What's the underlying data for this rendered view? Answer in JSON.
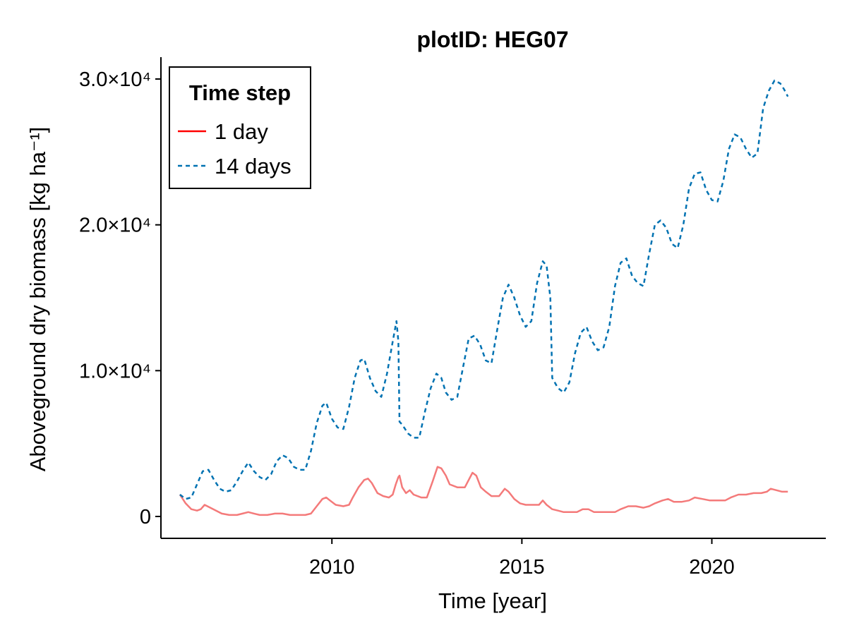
{
  "chart_data": {
    "type": "line",
    "title": "plotID: HEG07",
    "xlabel": "Time [year]",
    "ylabel": "Aboveground dry biomass [kg ha⁻¹]",
    "xlim": [
      2005.5,
      2023.0
    ],
    "ylim": [
      -1500,
      31500
    ],
    "x_ticks": [
      2010,
      2015,
      2020
    ],
    "x_tick_labels": [
      "2010",
      "2015",
      "2020"
    ],
    "y_ticks": [
      0,
      10000,
      20000,
      30000
    ],
    "y_tick_labels": [
      "0",
      "1.0×10⁴",
      "2.0×10⁴",
      "3.0×10⁴"
    ],
    "grid": false,
    "legend": {
      "title": "Time step",
      "position": "top-left"
    },
    "series": [
      {
        "name": "1 day",
        "color": "#ff0000",
        "line_color": "#f47a7a",
        "dash": "solid",
        "points": [
          [
            2006.0,
            1500
          ],
          [
            2006.15,
            900
          ],
          [
            2006.3,
            500
          ],
          [
            2006.45,
            400
          ],
          [
            2006.55,
            500
          ],
          [
            2006.65,
            800
          ],
          [
            2006.8,
            600
          ],
          [
            2006.95,
            400
          ],
          [
            2007.1,
            200
          ],
          [
            2007.3,
            100
          ],
          [
            2007.5,
            100
          ],
          [
            2007.65,
            200
          ],
          [
            2007.8,
            300
          ],
          [
            2007.95,
            200
          ],
          [
            2008.1,
            100
          ],
          [
            2008.3,
            100
          ],
          [
            2008.5,
            200
          ],
          [
            2008.7,
            200
          ],
          [
            2008.9,
            100
          ],
          [
            2009.1,
            100
          ],
          [
            2009.3,
            100
          ],
          [
            2009.45,
            200
          ],
          [
            2009.6,
            700
          ],
          [
            2009.75,
            1200
          ],
          [
            2009.85,
            1300
          ],
          [
            2009.95,
            1100
          ],
          [
            2010.1,
            800
          ],
          [
            2010.3,
            700
          ],
          [
            2010.45,
            800
          ],
          [
            2010.55,
            1300
          ],
          [
            2010.7,
            2000
          ],
          [
            2010.85,
            2500
          ],
          [
            2010.95,
            2600
          ],
          [
            2011.05,
            2300
          ],
          [
            2011.2,
            1600
          ],
          [
            2011.35,
            1400
          ],
          [
            2011.5,
            1300
          ],
          [
            2011.6,
            1500
          ],
          [
            2011.68,
            2200
          ],
          [
            2011.75,
            2700
          ],
          [
            2011.78,
            2800
          ],
          [
            2011.85,
            2000
          ],
          [
            2011.95,
            1600
          ],
          [
            2012.05,
            1800
          ],
          [
            2012.15,
            1500
          ],
          [
            2012.35,
            1300
          ],
          [
            2012.5,
            1300
          ],
          [
            2012.65,
            2400
          ],
          [
            2012.78,
            3400
          ],
          [
            2012.88,
            3300
          ],
          [
            2013.0,
            2800
          ],
          [
            2013.1,
            2200
          ],
          [
            2013.3,
            2000
          ],
          [
            2013.5,
            2000
          ],
          [
            2013.6,
            2500
          ],
          [
            2013.7,
            3000
          ],
          [
            2013.8,
            2800
          ],
          [
            2013.92,
            2000
          ],
          [
            2014.05,
            1700
          ],
          [
            2014.2,
            1400
          ],
          [
            2014.4,
            1400
          ],
          [
            2014.55,
            1900
          ],
          [
            2014.65,
            1700
          ],
          [
            2014.8,
            1200
          ],
          [
            2014.95,
            900
          ],
          [
            2015.1,
            800
          ],
          [
            2015.3,
            800
          ],
          [
            2015.45,
            800
          ],
          [
            2015.55,
            1100
          ],
          [
            2015.65,
            800
          ],
          [
            2015.8,
            500
          ],
          [
            2015.95,
            400
          ],
          [
            2016.1,
            300
          ],
          [
            2016.3,
            300
          ],
          [
            2016.45,
            300
          ],
          [
            2016.6,
            500
          ],
          [
            2016.75,
            500
          ],
          [
            2016.9,
            300
          ],
          [
            2017.05,
            300
          ],
          [
            2017.25,
            300
          ],
          [
            2017.45,
            300
          ],
          [
            2017.6,
            500
          ],
          [
            2017.8,
            700
          ],
          [
            2018.0,
            700
          ],
          [
            2018.2,
            600
          ],
          [
            2018.35,
            700
          ],
          [
            2018.5,
            900
          ],
          [
            2018.7,
            1100
          ],
          [
            2018.85,
            1200
          ],
          [
            2019.0,
            1000
          ],
          [
            2019.2,
            1000
          ],
          [
            2019.4,
            1100
          ],
          [
            2019.55,
            1300
          ],
          [
            2019.75,
            1200
          ],
          [
            2019.95,
            1100
          ],
          [
            2020.15,
            1100
          ],
          [
            2020.35,
            1100
          ],
          [
            2020.5,
            1300
          ],
          [
            2020.7,
            1500
          ],
          [
            2020.9,
            1500
          ],
          [
            2021.1,
            1600
          ],
          [
            2021.3,
            1600
          ],
          [
            2021.45,
            1700
          ],
          [
            2021.55,
            1900
          ],
          [
            2021.7,
            1800
          ],
          [
            2021.85,
            1700
          ],
          [
            2022.0,
            1700
          ]
        ]
      },
      {
        "name": "14 days",
        "color": "#0072b2",
        "line_color": "#0072b2",
        "dash": "dashed",
        "points": [
          [
            2006.0,
            1500
          ],
          [
            2006.15,
            1200
          ],
          [
            2006.3,
            1300
          ],
          [
            2006.45,
            2200
          ],
          [
            2006.6,
            3100
          ],
          [
            2006.75,
            3200
          ],
          [
            2006.9,
            2500
          ],
          [
            2007.05,
            1900
          ],
          [
            2007.2,
            1700
          ],
          [
            2007.35,
            1800
          ],
          [
            2007.5,
            2400
          ],
          [
            2007.65,
            3100
          ],
          [
            2007.8,
            3700
          ],
          [
            2007.95,
            3100
          ],
          [
            2008.1,
            2700
          ],
          [
            2008.25,
            2500
          ],
          [
            2008.4,
            2900
          ],
          [
            2008.55,
            3800
          ],
          [
            2008.7,
            4200
          ],
          [
            2008.85,
            4000
          ],
          [
            2009.0,
            3400
          ],
          [
            2009.15,
            3200
          ],
          [
            2009.3,
            3200
          ],
          [
            2009.45,
            4500
          ],
          [
            2009.6,
            6400
          ],
          [
            2009.75,
            7600
          ],
          [
            2009.85,
            7800
          ],
          [
            2010.0,
            6700
          ],
          [
            2010.15,
            6100
          ],
          [
            2010.3,
            6000
          ],
          [
            2010.45,
            7500
          ],
          [
            2010.6,
            9500
          ],
          [
            2010.75,
            10700
          ],
          [
            2010.85,
            10800
          ],
          [
            2011.0,
            9500
          ],
          [
            2011.15,
            8600
          ],
          [
            2011.3,
            8200
          ],
          [
            2011.45,
            9800
          ],
          [
            2011.6,
            12000
          ],
          [
            2011.7,
            13400
          ],
          [
            2011.75,
            12000
          ],
          [
            2011.78,
            6500
          ],
          [
            2011.85,
            6300
          ],
          [
            2012.0,
            5700
          ],
          [
            2012.15,
            5400
          ],
          [
            2012.3,
            5400
          ],
          [
            2012.45,
            7200
          ],
          [
            2012.6,
            8800
          ],
          [
            2012.75,
            9800
          ],
          [
            2012.88,
            9500
          ],
          [
            2013.0,
            8500
          ],
          [
            2013.15,
            8000
          ],
          [
            2013.3,
            8200
          ],
          [
            2013.45,
            10200
          ],
          [
            2013.6,
            12200
          ],
          [
            2013.75,
            12400
          ],
          [
            2013.9,
            11800
          ],
          [
            2014.05,
            10700
          ],
          [
            2014.2,
            10500
          ],
          [
            2014.35,
            12800
          ],
          [
            2014.5,
            15000
          ],
          [
            2014.65,
            15900
          ],
          [
            2014.8,
            15000
          ],
          [
            2014.95,
            13800
          ],
          [
            2015.1,
            13000
          ],
          [
            2015.25,
            13400
          ],
          [
            2015.4,
            16000
          ],
          [
            2015.55,
            17500
          ],
          [
            2015.65,
            17200
          ],
          [
            2015.75,
            15000
          ],
          [
            2015.8,
            9500
          ],
          [
            2015.95,
            8800
          ],
          [
            2016.1,
            8500
          ],
          [
            2016.25,
            9200
          ],
          [
            2016.4,
            11200
          ],
          [
            2016.55,
            12600
          ],
          [
            2016.7,
            13000
          ],
          [
            2016.85,
            12000
          ],
          [
            2017.0,
            11400
          ],
          [
            2017.15,
            11600
          ],
          [
            2017.3,
            13000
          ],
          [
            2017.45,
            15800
          ],
          [
            2017.6,
            17400
          ],
          [
            2017.75,
            17700
          ],
          [
            2017.9,
            16500
          ],
          [
            2018.05,
            16000
          ],
          [
            2018.2,
            15800
          ],
          [
            2018.35,
            18000
          ],
          [
            2018.5,
            20000
          ],
          [
            2018.65,
            20300
          ],
          [
            2018.8,
            19800
          ],
          [
            2018.95,
            18700
          ],
          [
            2019.1,
            18400
          ],
          [
            2019.25,
            20000
          ],
          [
            2019.4,
            22500
          ],
          [
            2019.55,
            23500
          ],
          [
            2019.7,
            23600
          ],
          [
            2019.85,
            22400
          ],
          [
            2020.0,
            21700
          ],
          [
            2020.15,
            21600
          ],
          [
            2020.3,
            23000
          ],
          [
            2020.45,
            25200
          ],
          [
            2020.6,
            26200
          ],
          [
            2020.75,
            26000
          ],
          [
            2020.9,
            25200
          ],
          [
            2021.05,
            24600
          ],
          [
            2021.2,
            24900
          ],
          [
            2021.35,
            28000
          ],
          [
            2021.5,
            29200
          ],
          [
            2021.65,
            29900
          ],
          [
            2021.8,
            29700
          ],
          [
            2021.9,
            29300
          ],
          [
            2022.0,
            28800
          ]
        ]
      }
    ]
  }
}
